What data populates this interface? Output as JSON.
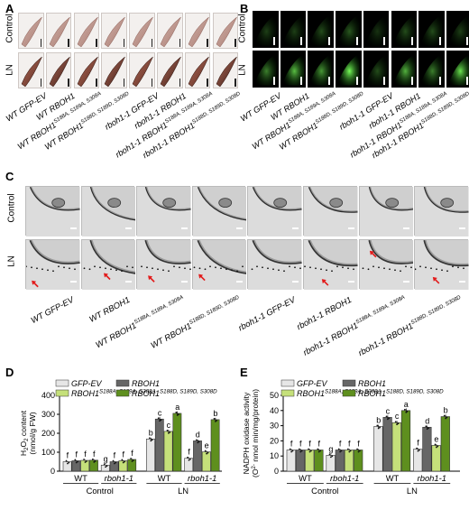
{
  "panels": {
    "A": {
      "label": "A",
      "rows": [
        "Control",
        "LN"
      ]
    },
    "B": {
      "label": "B",
      "rows": [
        "Control",
        "LN"
      ]
    },
    "C": {
      "label": "C",
      "rows": [
        "Control",
        "LN"
      ]
    },
    "D": {
      "label": "D"
    },
    "E": {
      "label": "E"
    }
  },
  "genotype_labels_AB": [
    {
      "base": "WT GFP-EV",
      "sup": ""
    },
    {
      "base": "WT RBOH1",
      "sup": ""
    },
    {
      "base": "WT RBOH1",
      "sup": "S188A, S189A, S308A"
    },
    {
      "base": "WT RBOH1",
      "sup": "S188D, S189D, S308D"
    },
    {
      "base": "rboh1-1 GFP-EV",
      "sup": ""
    },
    {
      "base": "rboh1-1 RBOH1",
      "sup": ""
    },
    {
      "base": "rboh1-1 RBOH1",
      "sup": "S188A, S189A, S308A"
    },
    {
      "base": "rboh1-1 RBOH1",
      "sup": "S188D, S189D, S308D"
    }
  ],
  "legend": [
    {
      "name": "GFP-EV",
      "color": "#e6e6e6"
    },
    {
      "name": "RBOH1",
      "color": "#666666"
    },
    {
      "name": "RBOH1",
      "sup": "S188A, S189A, S308A",
      "color": "#c5e07a"
    },
    {
      "name": "RBOH1",
      "sup": "S188D, S189D, S308D",
      "color": "#5e8f1e"
    }
  ],
  "chart_data": [
    {
      "panel": "D",
      "type": "bar",
      "ylabel": "H2O2 content (nmol/g FW)",
      "ylim": [
        0,
        400
      ],
      "yticks": [
        0,
        100,
        200,
        300,
        400
      ],
      "groups": [
        {
          "condition": "Control",
          "genotype": "WT",
          "values": [
            50,
            55,
            57,
            58
          ],
          "letters": [
            "f",
            "f",
            "f",
            "f"
          ]
        },
        {
          "condition": "Control",
          "genotype": "rboh1-1",
          "values": [
            32,
            50,
            55,
            62
          ],
          "letters": [
            "g",
            "f",
            "f",
            "f"
          ]
        },
        {
          "condition": "LN",
          "genotype": "WT",
          "values": [
            170,
            275,
            210,
            305
          ],
          "letters": [
            "b",
            "c",
            "c",
            "a"
          ]
        },
        {
          "condition": "LN",
          "genotype": "rboh1-1",
          "values": [
            68,
            160,
            102,
            272
          ],
          "letters": [
            "f",
            "d",
            "e",
            "b"
          ]
        }
      ]
    },
    {
      "panel": "E",
      "type": "bar",
      "ylabel": "NADPH oxidase activity (O2- nmol min/mg/protein)",
      "ylim": [
        0,
        50
      ],
      "yticks": [
        0,
        10,
        20,
        30,
        40,
        50
      ],
      "groups": [
        {
          "condition": "Control",
          "genotype": "WT",
          "values": [
            14,
            14,
            14,
            14
          ],
          "letters": [
            "f",
            "f",
            "f",
            "f"
          ]
        },
        {
          "condition": "Control",
          "genotype": "rboh1-1",
          "values": [
            10.5,
            14,
            14,
            14
          ],
          "letters": [
            "g",
            "f",
            "f",
            "f"
          ]
        },
        {
          "condition": "LN",
          "genotype": "WT",
          "values": [
            29.5,
            35.5,
            32,
            40
          ],
          "letters": [
            "b",
            "c",
            "c",
            "a"
          ]
        },
        {
          "condition": "LN",
          "genotype": "rboh1-1",
          "values": [
            14.5,
            29,
            17,
            36
          ],
          "letters": [
            "f",
            "d",
            "e",
            "b"
          ]
        }
      ]
    }
  ]
}
